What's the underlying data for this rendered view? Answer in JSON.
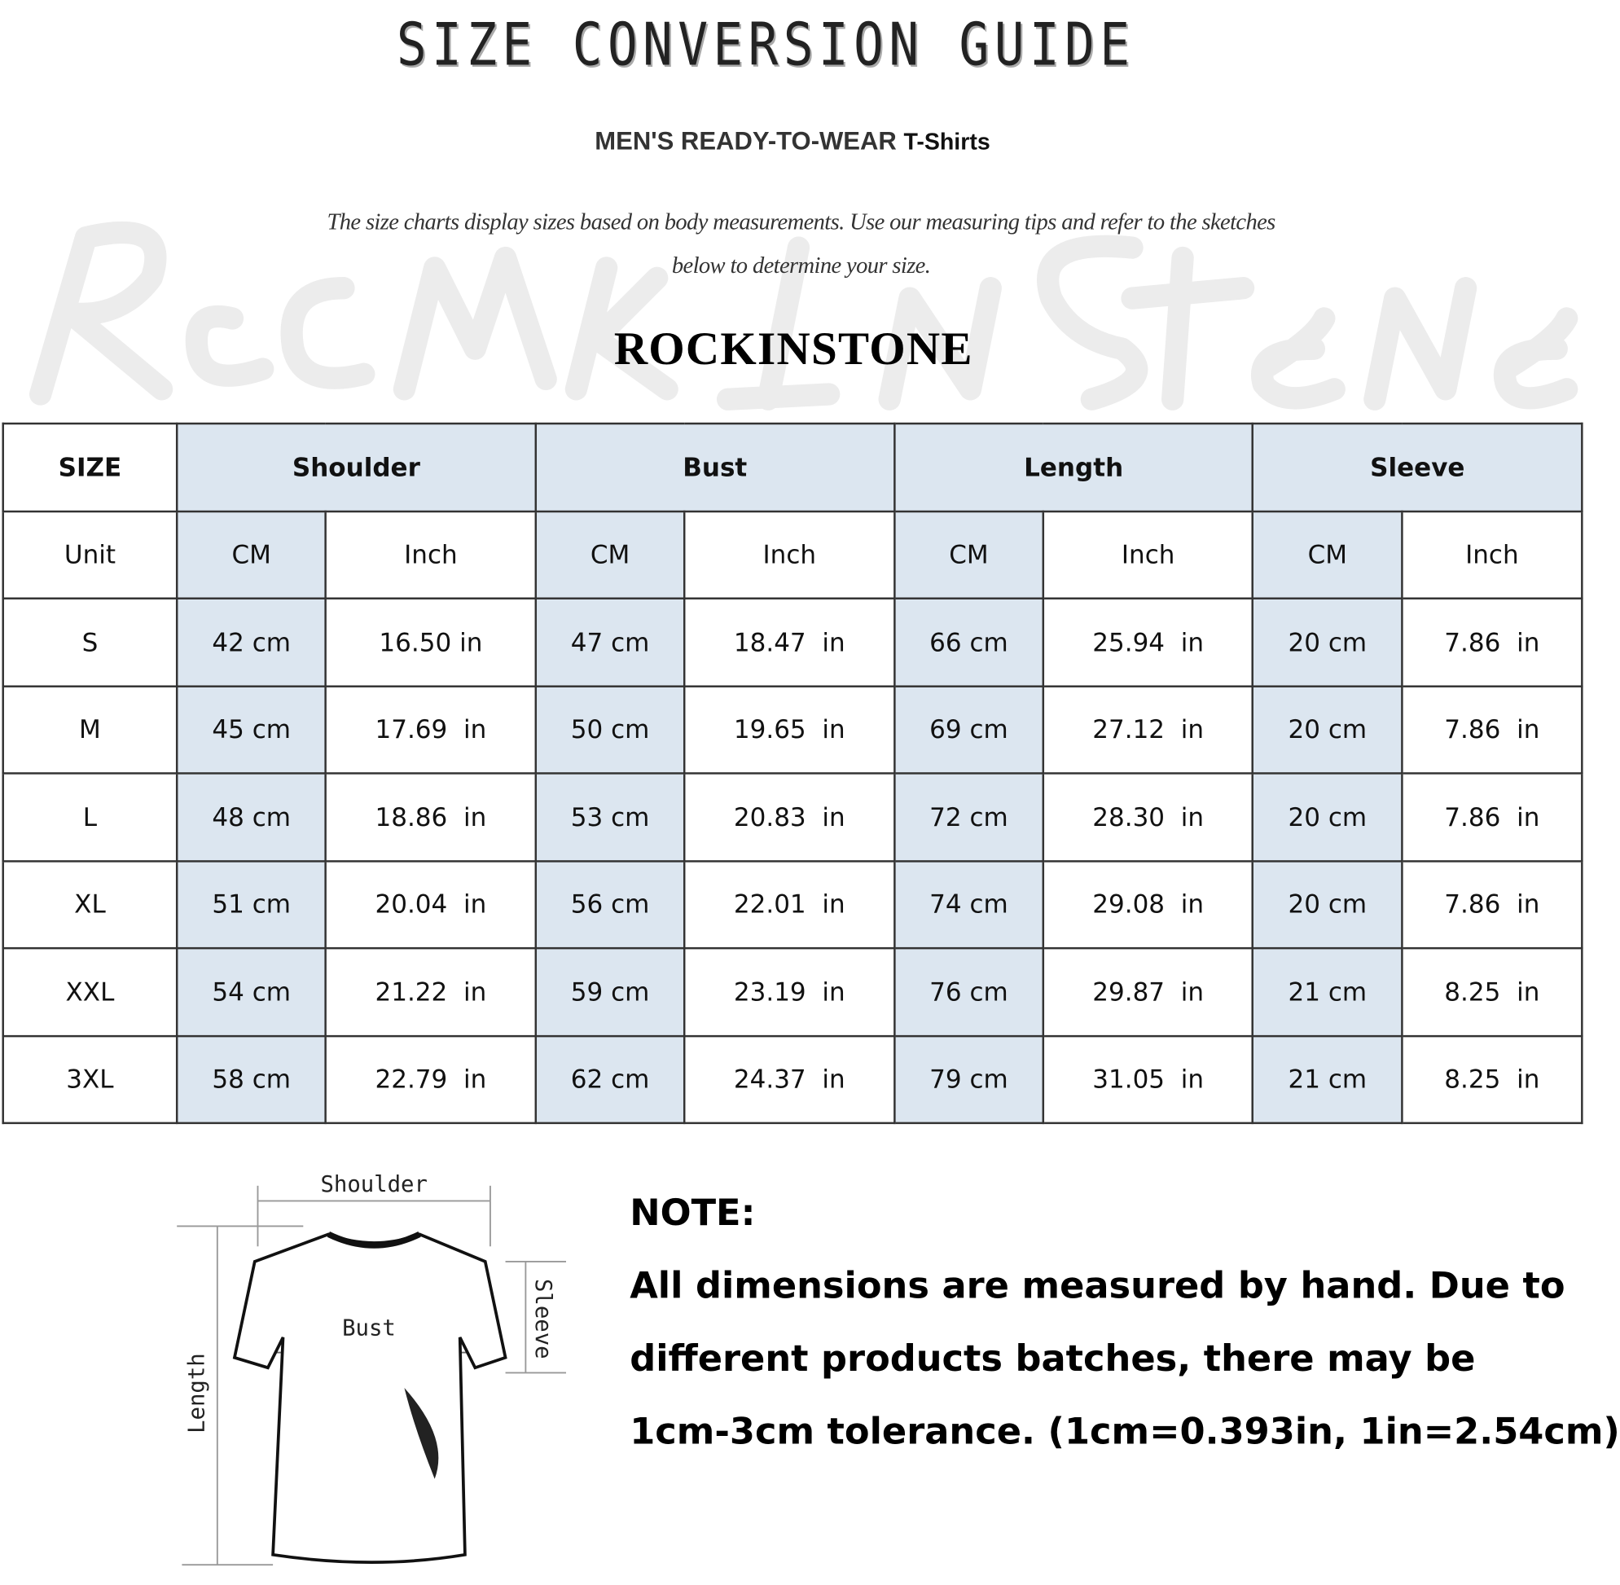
{
  "header": {
    "title": "SIZE CONVERSION GUIDE",
    "subtitle_main": "MEN'S READY-TO-WEAR",
    "subtitle_product": "T-Shirts",
    "description_line1": "The size charts display sizes based on body measurements. Use our measuring tips and refer to the sketches",
    "description_line2": "below to determine your size.",
    "watermark": "Rock In Stone",
    "brand": "ROCKINSTONE"
  },
  "table": {
    "size_header": "SIZE",
    "groups": [
      "Shoulder",
      "Bust",
      "Length",
      "Sleeve"
    ],
    "unit_label": "Unit",
    "units": [
      "CM",
      "Inch",
      "CM",
      "Inch",
      "CM",
      "Inch",
      "CM",
      "Inch"
    ],
    "rows": [
      {
        "size": "S",
        "values": [
          "42 cm",
          "16.50 in",
          "47 cm",
          "18.47  in",
          "66 cm",
          "25.94  in",
          "20 cm",
          "7.86  in"
        ]
      },
      {
        "size": "M",
        "values": [
          "45 cm",
          "17.69  in",
          "50 cm",
          "19.65  in",
          "69 cm",
          "27.12  in",
          "20 cm",
          "7.86  in"
        ]
      },
      {
        "size": "L",
        "values": [
          "48 cm",
          "18.86  in",
          "53 cm",
          "20.83  in",
          "72 cm",
          "28.30  in",
          "20 cm",
          "7.86  in"
        ]
      },
      {
        "size": "XL",
        "values": [
          "51 cm",
          "20.04  in",
          "56 cm",
          "22.01  in",
          "74 cm",
          "29.08  in",
          "20 cm",
          "7.86  in"
        ]
      },
      {
        "size": "XXL",
        "values": [
          "54 cm",
          "21.22  in",
          "59 cm",
          "23.19  in",
          "76 cm",
          "29.87  in",
          "21 cm",
          "8.25  in"
        ]
      },
      {
        "size": "3XL",
        "values": [
          "58 cm",
          "22.79  in",
          "62 cm",
          "24.37  in",
          "79 cm",
          "31.05  in",
          "21 cm",
          "8.25  in"
        ]
      }
    ],
    "highlight_color": "#dce6f0"
  },
  "diagram": {
    "shoulder": "Shoulder",
    "bust": "Bust",
    "length": "Length",
    "sleeve": "Sleeve"
  },
  "note": {
    "heading": "NOTE:",
    "line1": "All dimensions are measured by hand. Due to",
    "line2": "different products batches, there may be",
    "line3": "1cm-3cm tolerance. (1cm=0.393in, 1in=2.54cm)"
  }
}
